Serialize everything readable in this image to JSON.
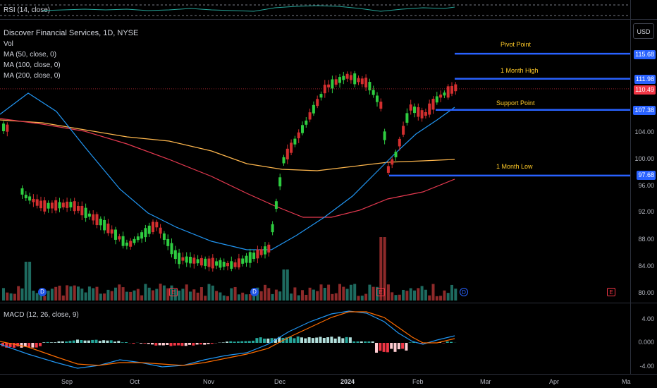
{
  "rsi": {
    "label": "RSI (14, close)"
  },
  "header": {
    "symbol": "Discover Financial Services, 1D, NYSE",
    "vol": "Vol",
    "ma50": "MA (50, close, 0)",
    "ma100": "MA (100, close, 0)",
    "ma200": "MA (200, close, 0)"
  },
  "currency": "USD",
  "annotations": {
    "pivot": "Pivot Point",
    "month_high": "1 Month High",
    "support": "Support Point",
    "month_low": "1 Month Low"
  },
  "price_tags": {
    "pivot": "115.68",
    "month_high": "111.98",
    "last": "110.49",
    "support": "107.38",
    "month_low": "97.68"
  },
  "price_ticks": [
    "104.00",
    "100.00",
    "96.00",
    "92.00",
    "88.00",
    "84.00",
    "80.00"
  ],
  "macd": {
    "label": "MACD (12, 26, close, 9)",
    "ticks": [
      "4.00",
      "0.000",
      "-4.00"
    ]
  },
  "x_ticks": [
    "Sep",
    "Oct",
    "Nov",
    "Dec",
    "2024",
    "Feb",
    "Mar",
    "Apr",
    "Ma"
  ],
  "events": {
    "dividend": "D",
    "earnings": "E"
  },
  "colors": {
    "up": "#22ab94",
    "down": "#f23645",
    "candle_up": "#2ecc40",
    "candle_down": "#d32f2f",
    "level_line": "#2962ff",
    "ma50": "#2196f3",
    "ma100": "#ffb74d",
    "ma200": "#e53950",
    "annotation": "#ffca28"
  }
}
